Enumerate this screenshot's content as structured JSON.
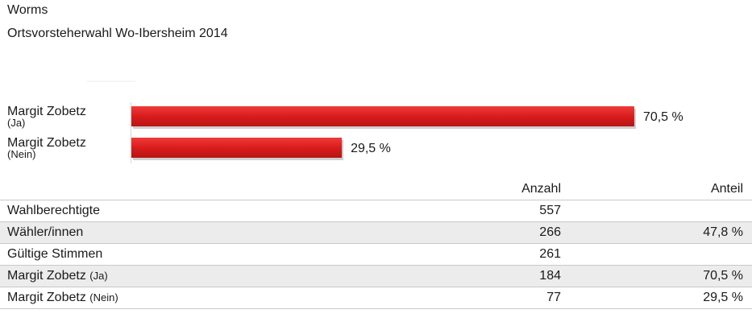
{
  "header": {
    "title": "Worms",
    "subtitle": "Ortsvorsteherwahl Wo-Ibersheim 2014"
  },
  "chart_data": {
    "type": "bar",
    "orientation": "horizontal",
    "categories": [
      {
        "name": "Margit Zobetz",
        "sub": "(Ja)"
      },
      {
        "name": "Margit Zobetz",
        "sub": "(Nein)"
      }
    ],
    "values": [
      70.5,
      29.5
    ],
    "value_labels": [
      "70,5 %",
      "29,5 %"
    ],
    "xlim": [
      0,
      100
    ],
    "grid": false,
    "bar_color": "#e02020"
  },
  "table": {
    "headers": {
      "name": "",
      "count": "Anzahl",
      "share": "Anteil"
    },
    "rows": [
      {
        "name": "Wahlberechtigte",
        "sub": "",
        "count": "557",
        "share": ""
      },
      {
        "name": "Wähler/innen",
        "sub": "",
        "count": "266",
        "share": "47,8 %"
      },
      {
        "name": "Gültige Stimmen",
        "sub": "",
        "count": "261",
        "share": ""
      },
      {
        "name": "Margit Zobetz",
        "sub": "(Ja)",
        "count": "184",
        "share": "70,5 %"
      },
      {
        "name": "Margit Zobetz",
        "sub": "(Nein)",
        "count": "77",
        "share": "29,5 %"
      }
    ]
  }
}
